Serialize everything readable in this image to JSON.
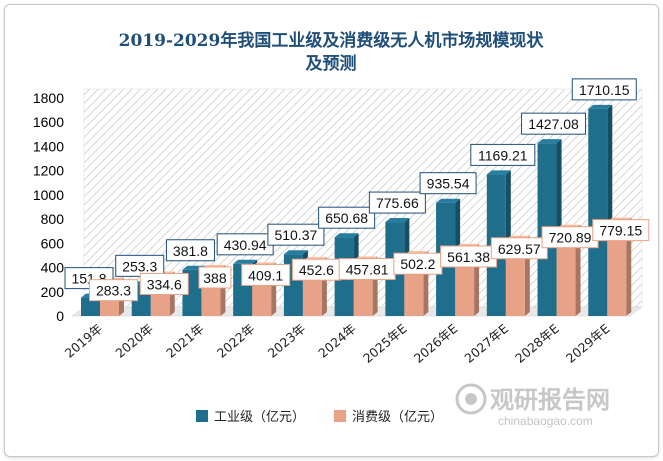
{
  "chart_data": {
    "type": "bar",
    "title": "2019-2029年我国工业级及消费级无人机市场规模现状及预测",
    "title_lines": [
      "2019-2029年我国工业级及消费级无人机市场规模现状",
      "及预测"
    ],
    "categories": [
      "2019年",
      "2020年",
      "2021年",
      "2022年",
      "2023年",
      "2024年",
      "2025年E",
      "2026年E",
      "2027年E",
      "2028年E",
      "2029年E"
    ],
    "series": [
      {
        "name": "工业级（亿元）",
        "color": "#1f6e8c",
        "values": [
          151.8,
          253.3,
          381.8,
          430.94,
          510.37,
          650.68,
          775.66,
          935.54,
          1169.21,
          1427.08,
          1710.15
        ]
      },
      {
        "name": "消费级（亿元）",
        "color": "#e8a287",
        "values": [
          283.3,
          334.6,
          388,
          409.1,
          452.6,
          457.81,
          502.2,
          561.38,
          629.57,
          720.89,
          779.15
        ]
      }
    ],
    "series_labels": [
      [
        "151.8",
        "253.3",
        "381.8",
        "430.94",
        "510.37",
        "650.68",
        "775.66",
        "935.54",
        "1169.21",
        "1427.08",
        "1710.15"
      ],
      [
        "283.3",
        "334.6",
        "388",
        "409.1",
        "452.6",
        "457.81",
        "502.2",
        "561.38",
        "629.57",
        "720.89",
        "779.15"
      ]
    ],
    "ylim": [
      0,
      1800
    ],
    "yticks": [
      0,
      200,
      400,
      600,
      800,
      1000,
      1200,
      1400,
      1600,
      1800
    ],
    "grid": false,
    "legend_position": "bottom"
  },
  "watermark": {
    "brand": "观研报告网",
    "url": "chinabaogao.com"
  }
}
